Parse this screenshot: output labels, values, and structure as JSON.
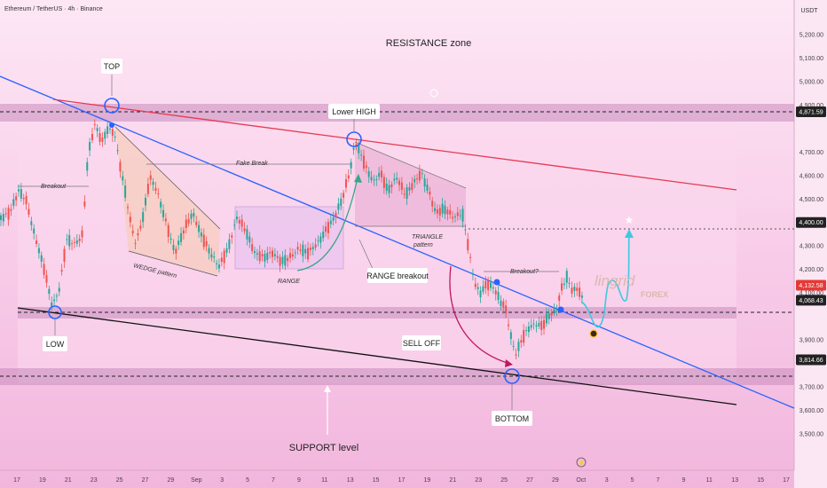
{
  "header": {
    "symbol": "Ethereum / TetherUS · 4h · Binance",
    "currency": "USDT"
  },
  "chart_data": {
    "type": "candlestick",
    "y_ticks": [
      5200,
      5100,
      5000,
      4900,
      4700,
      4600,
      4500,
      4300,
      4200,
      4100,
      3900,
      3700,
      3600,
      3500
    ],
    "y_tick_labels": [
      "5,200.00",
      "5,100.00",
      "5,000.00",
      "4,900.00",
      "4,700.00",
      "4,600.00",
      "4,500.00",
      "4,300.00",
      "4,200.00",
      "4,100.00",
      "3,900.00",
      "3,700.00",
      "3,600.00",
      "3,500.00"
    ],
    "x_tick_labels": [
      "17",
      "19",
      "21",
      "23",
      "25",
      "27",
      "29",
      "Sep",
      "3",
      "5",
      "7",
      "9",
      "11",
      "13",
      "15",
      "17",
      "19",
      "21",
      "23",
      "25",
      "27",
      "29",
      "Oct",
      "3",
      "5",
      "7",
      "9",
      "11",
      "13",
      "15",
      "17"
    ],
    "price_tags": [
      {
        "label": "4,871.59",
        "value": 4871.59,
        "color": "#222222"
      },
      {
        "label": "4,400.00",
        "value": 4400,
        "color": "#222222"
      },
      {
        "label": "4,132.58",
        "value": 4132.58,
        "color": "#e53935"
      },
      {
        "label": "4,068.43",
        "value": 4068.43,
        "color": "#222222"
      },
      {
        "label": "3,814.66",
        "value": 3814.66,
        "color": "#222222"
      }
    ],
    "annotations": {
      "resistance": "RESISTANCE zone",
      "top": "TOP",
      "lower_high": "Lower HIGH",
      "low": "LOW",
      "bottom": "BOTTOM",
      "sell_off": "SELL OFF",
      "range_breakout": "RANGE breakout",
      "support": "SUPPORT level",
      "breakout": "Breakout",
      "fake_break": "Fake Break",
      "wedge": "WEDGE pattern",
      "range": "RANGE",
      "triangle_1": "TRIANGLE",
      "triangle_2": "pattern",
      "breakout_q": "Breakout?"
    },
    "watermark": {
      "line1": "lingrid",
      "line2": "FOREX"
    },
    "colors": {
      "bull": "#26a69a",
      "bear": "#ef5350",
      "trend_blue": "#2962ff",
      "trend_red": "#e53950",
      "zone": "#c98bbd"
    }
  }
}
